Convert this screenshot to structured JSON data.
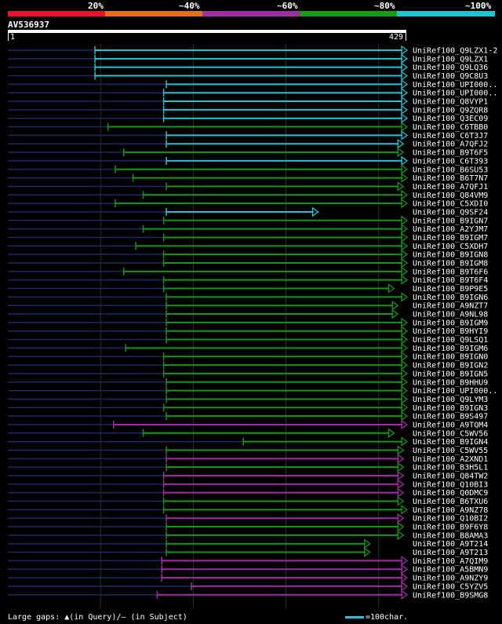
{
  "legend": {
    "labels": [
      "20%",
      "~40%",
      "~60%",
      "~80%",
      "~100%"
    ],
    "colors": [
      "#e8142c",
      "#e3701c",
      "#9b2ea0",
      "#189a12",
      "#23c3d3"
    ]
  },
  "query": {
    "id": "AV536937",
    "start": "1",
    "end": "429",
    "length": 429
  },
  "footer": {
    "text": "Large gaps: ▲(in Query)/– (in Subject)",
    "scale": "=100char."
  },
  "colors": {
    "cyan": "#23c3d3",
    "green": "#169616",
    "purple": "#a32ca5",
    "dash": "#1a2a66",
    "grid": "#1e3a1e"
  },
  "rows": [
    {
      "label": "UniRef100_Q9LZX1-2",
      "start": 94,
      "end": 429,
      "color": "cyan"
    },
    {
      "label": "UniRef100_Q9LZX1",
      "start": 94,
      "end": 429,
      "color": "cyan"
    },
    {
      "label": "UniRef100_Q9LQ36",
      "start": 94,
      "end": 429,
      "color": "cyan"
    },
    {
      "label": "UniRef100_Q9C8U3",
      "start": 94,
      "end": 429,
      "color": "cyan"
    },
    {
      "label": "UniRef100_UPI000..",
      "start": 171,
      "end": 429,
      "color": "cyan"
    },
    {
      "label": "UniRef100_UPI000..",
      "start": 168,
      "end": 429,
      "color": "cyan"
    },
    {
      "label": "UniRef100_Q8VYP1",
      "start": 168,
      "end": 429,
      "color": "cyan"
    },
    {
      "label": "UniRef100_Q9ZQR8",
      "start": 168,
      "end": 429,
      "color": "cyan"
    },
    {
      "label": "UniRef100_Q3EC09",
      "start": 168,
      "end": 429,
      "color": "cyan"
    },
    {
      "label": "UniRef100_C6TBB0",
      "start": 108,
      "end": 429,
      "color": "green"
    },
    {
      "label": "UniRef100_C6T3J7",
      "start": 171,
      "end": 429,
      "color": "cyan"
    },
    {
      "label": "UniRef100_A7QFJ2",
      "start": 171,
      "end": 425,
      "color": "cyan"
    },
    {
      "label": "UniRef100_B9T6F5",
      "start": 125,
      "end": 425,
      "color": "green"
    },
    {
      "label": "UniRef100_C6T393",
      "start": 171,
      "end": 429,
      "color": "cyan"
    },
    {
      "label": "UniRef100_B6SU53",
      "start": 116,
      "end": 429,
      "color": "green"
    },
    {
      "label": "UniRef100_B6T7N7",
      "start": 135,
      "end": 429,
      "color": "green"
    },
    {
      "label": "UniRef100_A7QFJ1",
      "start": 171,
      "end": 425,
      "color": "green"
    },
    {
      "label": "UniRef100_Q84VM9",
      "start": 146,
      "end": 429,
      "color": "green"
    },
    {
      "label": "UniRef100_C5XDI0",
      "start": 116,
      "end": 429,
      "color": "green"
    },
    {
      "label": "UniRef100_Q9SF24",
      "start": 171,
      "end": 333,
      "color": "cyan"
    },
    {
      "label": "UniRef100_B9IGN7",
      "start": 168,
      "end": 429,
      "color": "green"
    },
    {
      "label": "UniRef100_A2YJM7",
      "start": 146,
      "end": 429,
      "color": "green"
    },
    {
      "label": "UniRef100_B9IGM7",
      "start": 168,
      "end": 429,
      "color": "green"
    },
    {
      "label": "UniRef100_C5XDH7",
      "start": 138,
      "end": 429,
      "color": "green"
    },
    {
      "label": "UniRef100_B9IGN8",
      "start": 168,
      "end": 429,
      "color": "green"
    },
    {
      "label": "UniRef100_B9IGM8",
      "start": 168,
      "end": 429,
      "color": "green"
    },
    {
      "label": "UniRef100_B9T6F6",
      "start": 125,
      "end": 429,
      "color": "green"
    },
    {
      "label": "UniRef100_B9T6F4",
      "start": 168,
      "end": 429,
      "color": "green"
    },
    {
      "label": "UniRef100_B9P9E5",
      "start": 168,
      "end": 415,
      "color": "green"
    },
    {
      "label": "UniRef100_B9IGN6",
      "start": 171,
      "end": 429,
      "color": "green"
    },
    {
      "label": "UniRef100_A9NZT7",
      "start": 171,
      "end": 419,
      "color": "green"
    },
    {
      "label": "UniRef100_A9NL98",
      "start": 171,
      "end": 419,
      "color": "green"
    },
    {
      "label": "UniRef100_B9IGM9",
      "start": 171,
      "end": 429,
      "color": "green"
    },
    {
      "label": "UniRef100_B9HYI9",
      "start": 171,
      "end": 429,
      "color": "green"
    },
    {
      "label": "UniRef100_Q9LSQ1",
      "start": 171,
      "end": 429,
      "color": "green"
    },
    {
      "label": "UniRef100_B9IGM6",
      "start": 127,
      "end": 429,
      "color": "green"
    },
    {
      "label": "UniRef100_B9IGN0",
      "start": 168,
      "end": 429,
      "color": "green"
    },
    {
      "label": "UniRef100_B9IGN2",
      "start": 168,
      "end": 429,
      "color": "green"
    },
    {
      "label": "UniRef100_B9IGN5",
      "start": 168,
      "end": 429,
      "color": "green"
    },
    {
      "label": "UniRef100_B9HHU9",
      "start": 171,
      "end": 429,
      "color": "green"
    },
    {
      "label": "UniRef100_UPI000..",
      "start": 171,
      "end": 429,
      "color": "green"
    },
    {
      "label": "UniRef100_Q9LYM3",
      "start": 171,
      "end": 429,
      "color": "green"
    },
    {
      "label": "UniRef100_B9IGN3",
      "start": 168,
      "end": 429,
      "color": "green"
    },
    {
      "label": "UniRef100_B9S497",
      "start": 171,
      "end": 429,
      "color": "green"
    },
    {
      "label": "UniRef100_A9TQM4",
      "start": 114,
      "end": 429,
      "color": "purple"
    },
    {
      "label": "UniRef100_C5WV56",
      "start": 146,
      "end": 415,
      "color": "green"
    },
    {
      "label": "UniRef100_B9IGN4",
      "start": 254,
      "end": 429,
      "color": "green"
    },
    {
      "label": "UniRef100_C5WV55",
      "start": 171,
      "end": 425,
      "color": "green"
    },
    {
      "label": "UniRef100_A2XND1",
      "start": 171,
      "end": 425,
      "color": "purple"
    },
    {
      "label": "UniRef100_B3H5L1",
      "start": 171,
      "end": 425,
      "color": "green"
    },
    {
      "label": "UniRef100_Q84TW2",
      "start": 168,
      "end": 425,
      "color": "purple"
    },
    {
      "label": "UniRef100_Q10BI3",
      "start": 168,
      "end": 425,
      "color": "purple"
    },
    {
      "label": "UniRef100_Q0DMC9",
      "start": 168,
      "end": 425,
      "color": "purple"
    },
    {
      "label": "UniRef100_B6TXU6",
      "start": 168,
      "end": 425,
      "color": "green"
    },
    {
      "label": "UniRef100_A9NZ78",
      "start": 168,
      "end": 429,
      "color": "green"
    },
    {
      "label": "UniRef100_Q10BI2",
      "start": 171,
      "end": 425,
      "color": "purple"
    },
    {
      "label": "UniRef100_B9F6Y8",
      "start": 171,
      "end": 425,
      "color": "green"
    },
    {
      "label": "UniRef100_B8AMA3",
      "start": 171,
      "end": 425,
      "color": "green"
    },
    {
      "label": "UniRef100_A9T214",
      "start": 171,
      "end": 389,
      "color": "green"
    },
    {
      "label": "UniRef100_A9T213",
      "start": 171,
      "end": 389,
      "color": "green"
    },
    {
      "label": "UniRef100_A7QIM9",
      "start": 166,
      "end": 429,
      "color": "purple"
    },
    {
      "label": "UniRef100_A5BMN9",
      "start": 166,
      "end": 429,
      "color": "purple"
    },
    {
      "label": "UniRef100_A9NZY9",
      "start": 166,
      "end": 429,
      "color": "purple"
    },
    {
      "label": "UniRef100_C5YZV5",
      "start": 198,
      "end": 429,
      "color": "purple"
    },
    {
      "label": "UniRef100_B9SMG8",
      "start": 161,
      "end": 429,
      "color": "purple"
    }
  ]
}
